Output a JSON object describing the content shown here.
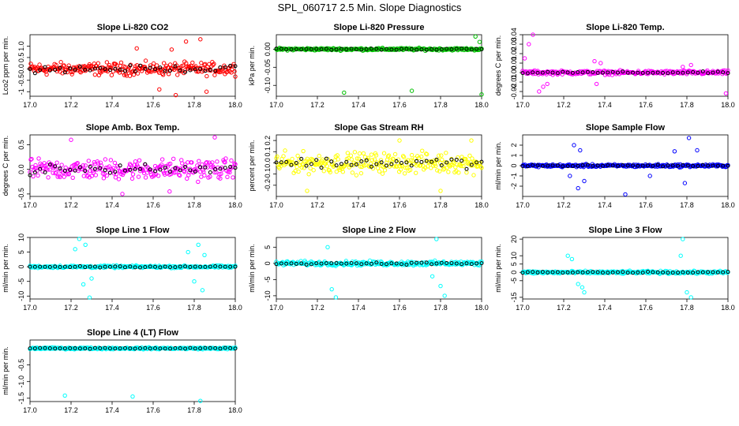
{
  "title": "SPL_060717  2.5 Min. Slope Diagnostics",
  "chart_data": [
    {
      "type": "scatter",
      "title": "Slope Li-820 CO2",
      "ylabel": "Lco2 ppm per min.",
      "xlim": [
        17.0,
        18.0
      ],
      "ylim": [
        -1.2,
        1.5
      ],
      "xticks": [
        17.0,
        17.2,
        17.4,
        17.6,
        17.8,
        18.0
      ],
      "yticks": [
        -1,
        -0.5,
        0,
        0.5,
        1
      ],
      "ytick_labels": [
        "-1",
        "-0.5",
        "0.0",
        "0.5",
        "1.0"
      ],
      "color": "#ff0000",
      "spread": 0.4,
      "outliers": [
        [
          17.63,
          -0.9
        ],
        [
          17.71,
          -1.15
        ],
        [
          17.76,
          1.2
        ],
        [
          17.52,
          0.9
        ],
        [
          17.83,
          1.3
        ],
        [
          17.86,
          -1.0
        ],
        [
          17.69,
          0.85
        ]
      ]
    },
    {
      "type": "scatter",
      "title": "Slope Li-820 Pressure",
      "ylabel": "kPa per min.",
      "xlim": [
        17.0,
        18.0
      ],
      "ylim": [
        -0.13,
        0.04
      ],
      "xticks": [
        17.0,
        17.2,
        17.4,
        17.6,
        17.8,
        18.0
      ],
      "yticks": [
        -0.1,
        -0.05,
        0.0
      ],
      "ytick_labels": [
        "-0.10",
        "-0.05",
        "0.00"
      ],
      "color": "#00c000",
      "spread": 0.005,
      "outliers": [
        [
          17.33,
          -0.12
        ],
        [
          17.66,
          -0.115
        ],
        [
          18.0,
          -0.125
        ],
        [
          17.97,
          0.035
        ],
        [
          17.99,
          0.02
        ]
      ]
    },
    {
      "type": "scatter",
      "title": "Slope Li-820 Temp.",
      "ylabel": "degrees C per min.",
      "xlim": [
        17.0,
        18.0
      ],
      "ylim": [
        -0.025,
        0.04
      ],
      "xticks": [
        17.0,
        17.2,
        17.4,
        17.6,
        17.8,
        18.0
      ],
      "yticks": [
        -0.02,
        -0.01,
        0.0,
        0.01,
        0.02,
        0.03,
        0.04
      ],
      "ytick_labels": [
        "-0.02",
        "-0.01",
        "0.00",
        "0.01",
        "0.02",
        "0.03",
        "0.04"
      ],
      "color": "#ff00ff",
      "spread": 0.003,
      "outliers": [
        [
          17.03,
          0.03
        ],
        [
          17.05,
          0.04
        ],
        [
          17.01,
          0.015
        ],
        [
          17.08,
          -0.02
        ],
        [
          17.1,
          -0.015
        ],
        [
          17.12,
          -0.012
        ],
        [
          17.35,
          0.012
        ],
        [
          17.36,
          -0.012
        ],
        [
          17.38,
          0.01
        ],
        [
          17.82,
          0.008
        ],
        [
          17.78,
          0.006
        ],
        [
          17.99,
          -0.022
        ]
      ]
    },
    {
      "type": "scatter",
      "title": "Slope Amb. Box Temp.",
      "ylabel": "degrees C per min.",
      "xlim": [
        17.0,
        18.0
      ],
      "ylim": [
        -0.55,
        0.7
      ],
      "xticks": [
        17.0,
        17.2,
        17.4,
        17.6,
        17.8,
        18.0
      ],
      "yticks": [
        -0.5,
        0.0,
        0.5
      ],
      "ytick_labels": [
        "-0.5",
        "0.0",
        "0.5"
      ],
      "color": "#ff00ff",
      "spread": 0.3,
      "outliers": [
        [
          17.2,
          0.6
        ],
        [
          17.9,
          0.65
        ],
        [
          17.45,
          -0.5
        ],
        [
          17.68,
          -0.45
        ]
      ]
    },
    {
      "type": "scatter",
      "title": "Slope Gas Stream RH",
      "ylabel": "percent per min.",
      "xlim": [
        17.0,
        18.0
      ],
      "ylim": [
        -0.3,
        0.25
      ],
      "xticks": [
        17.0,
        17.2,
        17.4,
        17.6,
        17.8,
        18.0
      ],
      "yticks": [
        -0.2,
        -0.1,
        0.0,
        0.1,
        0.2
      ],
      "ytick_labels": [
        "-0.2",
        "-0.1",
        "0.0",
        "0.1",
        "0.2"
      ],
      "color": "#ffff00",
      "spread": 0.13,
      "outliers": [
        [
          17.15,
          -0.25
        ],
        [
          17.8,
          -0.25
        ],
        [
          17.6,
          0.2
        ],
        [
          17.95,
          0.2
        ]
      ]
    },
    {
      "type": "scatter",
      "title": "Slope Sample Flow",
      "ylabel": "ml/min per min.",
      "xlim": [
        17.0,
        18.0
      ],
      "ylim": [
        -3,
        3
      ],
      "xticks": [
        17.0,
        17.2,
        17.4,
        17.6,
        17.8,
        18.0
      ],
      "yticks": [
        -2,
        -1,
        0,
        1,
        2
      ],
      "ytick_labels": [
        "-2",
        "-1",
        "0",
        "1",
        "2"
      ],
      "color": "#0000ff",
      "spread": 0.2,
      "outliers": [
        [
          17.25,
          2.0
        ],
        [
          17.28,
          1.5
        ],
        [
          17.23,
          -1.0
        ],
        [
          17.3,
          -1.5
        ],
        [
          17.27,
          -2.2
        ],
        [
          17.5,
          -2.8
        ],
        [
          17.74,
          1.4
        ],
        [
          17.79,
          -1.7
        ],
        [
          17.81,
          2.7
        ],
        [
          17.62,
          -1.0
        ],
        [
          17.85,
          1.5
        ]
      ]
    },
    {
      "type": "scatter",
      "title": "Slope Line 1 Flow",
      "ylabel": "ml/min per min.",
      "xlim": [
        17.0,
        18.0
      ],
      "ylim": [
        -11,
        10
      ],
      "xticks": [
        17.0,
        17.2,
        17.4,
        17.6,
        17.8,
        18.0
      ],
      "yticks": [
        -10,
        -5,
        0,
        5,
        10
      ],
      "ytick_labels": [
        "-10",
        "-5",
        "0",
        "5",
        "10"
      ],
      "color": "#00ffff",
      "spread": 0.6,
      "outliers": [
        [
          17.22,
          6
        ],
        [
          17.24,
          9.5
        ],
        [
          17.26,
          -6
        ],
        [
          17.27,
          7.5
        ],
        [
          17.29,
          -10.5
        ],
        [
          17.3,
          -4
        ],
        [
          17.77,
          5
        ],
        [
          17.8,
          -5
        ],
        [
          17.82,
          7.5
        ],
        [
          17.84,
          -8
        ],
        [
          17.85,
          4
        ]
      ]
    },
    {
      "type": "scatter",
      "title": "Slope Line 2 Flow",
      "ylabel": "ml/min per min.",
      "xlim": [
        17.0,
        18.0
      ],
      "ylim": [
        -11,
        8
      ],
      "xticks": [
        17.0,
        17.2,
        17.4,
        17.6,
        17.8,
        18.0
      ],
      "yticks": [
        -10,
        -5,
        0,
        5
      ],
      "ytick_labels": [
        "-10",
        "-5",
        "0",
        "5"
      ],
      "color": "#00ffff",
      "spread": 1.0,
      "outliers": [
        [
          17.25,
          5
        ],
        [
          17.27,
          -8
        ],
        [
          17.29,
          -10.5
        ],
        [
          17.78,
          7.5
        ],
        [
          17.8,
          -7
        ],
        [
          17.82,
          -10
        ],
        [
          17.76,
          -4
        ]
      ]
    },
    {
      "type": "scatter",
      "title": "Slope Line 3 Flow",
      "ylabel": "ml/min per min.",
      "xlim": [
        17.0,
        18.0
      ],
      "ylim": [
        -16,
        21
      ],
      "xticks": [
        17.0,
        17.2,
        17.4,
        17.6,
        17.8,
        18.0
      ],
      "yticks": [
        -15,
        -5,
        0,
        5,
        10,
        20
      ],
      "ytick_labels": [
        "-15",
        "-5",
        "0",
        "5",
        "10",
        "20"
      ],
      "color": "#00ffff",
      "spread": 1.2,
      "outliers": [
        [
          17.22,
          10
        ],
        [
          17.24,
          8
        ],
        [
          17.27,
          -7
        ],
        [
          17.29,
          -9
        ],
        [
          17.3,
          -12
        ],
        [
          17.78,
          20
        ],
        [
          17.8,
          -12
        ],
        [
          17.82,
          -15
        ],
        [
          17.77,
          10
        ]
      ]
    },
    {
      "type": "scatter",
      "title": "Slope Line 4 (LT) Flow",
      "ylabel": "ml/min per min.",
      "xlim": [
        17.0,
        18.0
      ],
      "ylim": [
        -1.6,
        0.25
      ],
      "xticks": [
        17.0,
        17.2,
        17.4,
        17.6,
        17.8,
        18.0
      ],
      "yticks": [
        -1.5,
        -1.0,
        -0.5
      ],
      "ytick_labels": [
        "-1.5",
        "-1.0",
        "-0.5"
      ],
      "color": "#00ffff",
      "spread": 0.04,
      "outliers": [
        [
          17.17,
          -1.42
        ],
        [
          17.5,
          -1.45
        ],
        [
          17.83,
          -1.58
        ]
      ]
    }
  ]
}
